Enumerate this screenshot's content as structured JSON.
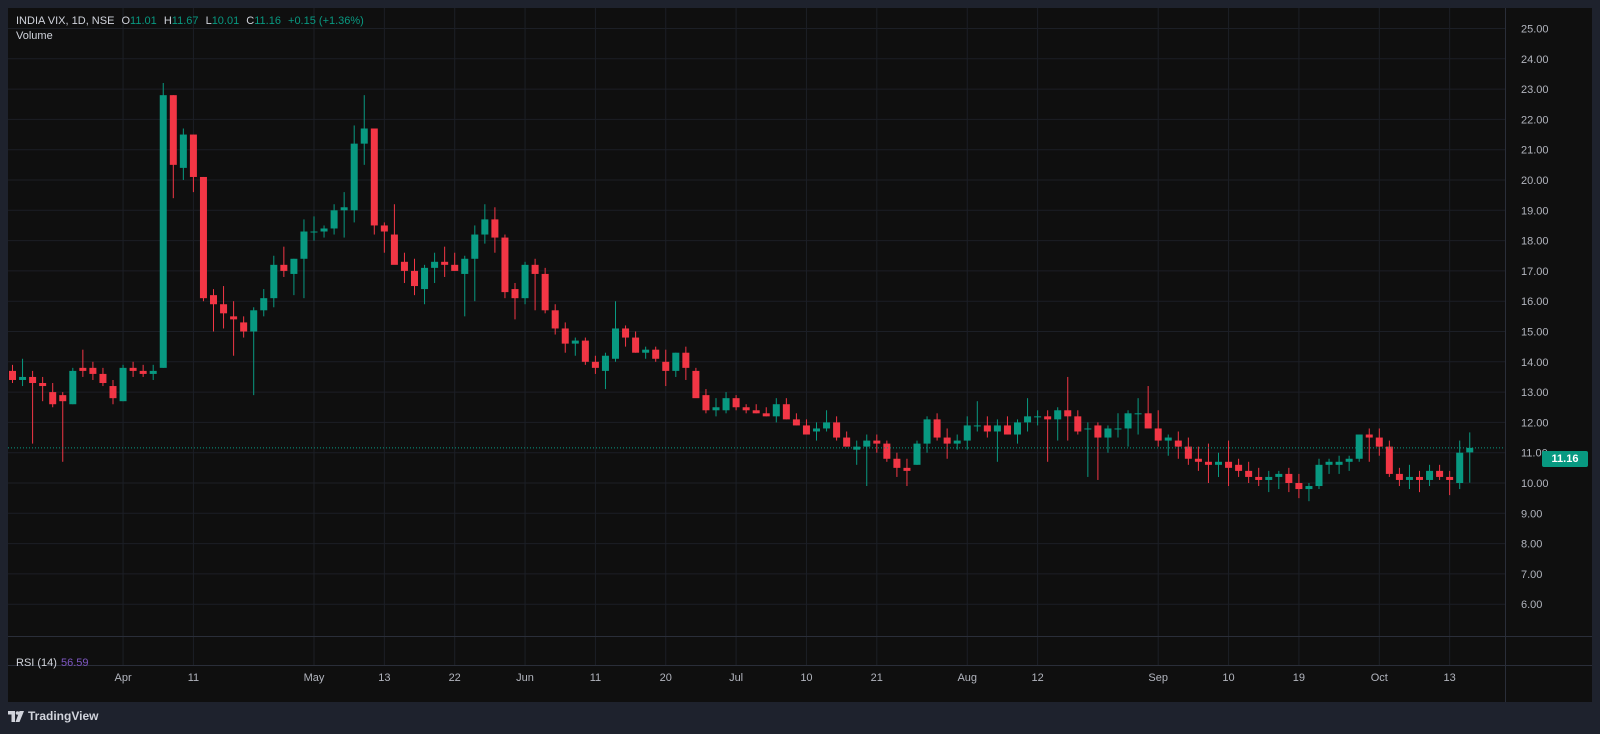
{
  "header": {
    "symbol": "INDIA VIX, 1D, NSE",
    "open_label": "O",
    "open": "11.01",
    "high_label": "H",
    "high": "11.67",
    "low_label": "L",
    "low": "10.01",
    "close_label": "C",
    "close": "11.16",
    "change": "+0.15 (+1.36%)"
  },
  "volume_label": "Volume",
  "rsi": {
    "label": "RSI (14)",
    "value": "56.59"
  },
  "last_price_tag": "11.16",
  "footer": {
    "brand": "TradingView"
  },
  "colors": {
    "up": "#089981",
    "down": "#f23645",
    "background": "#0f0f0f",
    "grid": "#1c1f26",
    "rsi": "#7e57c2"
  },
  "chart_data": {
    "type": "candlestick",
    "ylim": [
      5.5,
      25.3
    ],
    "y_ticks": [
      "25.00",
      "24.00",
      "23.00",
      "22.00",
      "21.00",
      "20.00",
      "19.00",
      "18.00",
      "17.00",
      "16.00",
      "15.00",
      "14.00",
      "13.00",
      "12.00",
      "11.00",
      "10.00",
      "9.00",
      "8.00",
      "7.00",
      "6.00"
    ],
    "x_tick_labels": [
      {
        "label": "Apr",
        "index": 11
      },
      {
        "label": "11",
        "index": 18
      },
      {
        "label": "May",
        "index": 30
      },
      {
        "label": "13",
        "index": 37
      },
      {
        "label": "22",
        "index": 44
      },
      {
        "label": "Jun",
        "index": 51
      },
      {
        "label": "11",
        "index": 58
      },
      {
        "label": "20",
        "index": 65
      },
      {
        "label": "Jul",
        "index": 72
      },
      {
        "label": "10",
        "index": 79
      },
      {
        "label": "21",
        "index": 86
      },
      {
        "label": "Aug",
        "index": 95
      },
      {
        "label": "12",
        "index": 102
      },
      {
        "label": "Sep",
        "index": 114
      },
      {
        "label": "10",
        "index": 121
      },
      {
        "label": "19",
        "index": 128
      },
      {
        "label": "Oct",
        "index": 136
      },
      {
        "label": "13",
        "index": 143
      }
    ],
    "last_price": 11.16,
    "candles": [
      [
        13.7,
        13.9,
        13.3,
        13.4
      ],
      [
        13.4,
        14.1,
        13.2,
        13.5
      ],
      [
        13.5,
        13.7,
        11.3,
        13.3
      ],
      [
        13.3,
        13.5,
        12.7,
        13.2
      ],
      [
        13.0,
        13.3,
        12.5,
        12.6
      ],
      [
        12.9,
        13.0,
        10.7,
        12.7
      ],
      [
        12.6,
        13.8,
        12.6,
        13.7
      ],
      [
        13.8,
        14.4,
        13.5,
        13.7
      ],
      [
        13.8,
        14.0,
        13.4,
        13.6
      ],
      [
        13.6,
        13.8,
        13.2,
        13.3
      ],
      [
        13.2,
        13.4,
        12.6,
        12.8
      ],
      [
        12.7,
        13.9,
        12.7,
        13.8
      ],
      [
        13.8,
        14.0,
        13.5,
        13.7
      ],
      [
        13.7,
        13.9,
        13.5,
        13.6
      ],
      [
        13.6,
        13.9,
        13.4,
        13.7
      ],
      [
        13.8,
        23.2,
        13.8,
        22.8
      ],
      [
        22.8,
        22.8,
        19.4,
        20.5
      ],
      [
        20.4,
        21.7,
        20.0,
        21.5
      ],
      [
        21.5,
        21.5,
        19.6,
        20.1
      ],
      [
        20.1,
        20.1,
        16.0,
        16.1
      ],
      [
        16.2,
        16.4,
        15.0,
        15.9
      ],
      [
        15.9,
        16.5,
        15.1,
        15.6
      ],
      [
        15.5,
        16.0,
        14.2,
        15.4
      ],
      [
        15.3,
        15.5,
        14.8,
        15.0
      ],
      [
        15.0,
        15.8,
        12.9,
        15.7
      ],
      [
        15.7,
        16.4,
        15.5,
        16.1
      ],
      [
        16.1,
        17.5,
        15.8,
        17.2
      ],
      [
        17.2,
        17.8,
        16.8,
        17.0
      ],
      [
        16.9,
        17.4,
        16.2,
        17.4
      ],
      [
        17.4,
        18.7,
        16.1,
        18.3
      ],
      [
        18.3,
        18.8,
        18.0,
        18.3
      ],
      [
        18.3,
        18.5,
        18.1,
        18.4
      ],
      [
        18.4,
        19.2,
        18.2,
        19.0
      ],
      [
        19.0,
        19.6,
        18.1,
        19.1
      ],
      [
        19.0,
        21.8,
        18.6,
        21.2
      ],
      [
        21.2,
        22.8,
        20.5,
        21.7
      ],
      [
        21.7,
        21.7,
        18.2,
        18.5
      ],
      [
        18.5,
        18.6,
        17.6,
        18.3
      ],
      [
        18.2,
        19.2,
        17.3,
        17.2
      ],
      [
        17.3,
        17.6,
        16.6,
        17.0
      ],
      [
        17.0,
        17.4,
        16.2,
        16.5
      ],
      [
        16.4,
        17.2,
        15.9,
        17.1
      ],
      [
        17.1,
        17.6,
        16.6,
        17.3
      ],
      [
        17.3,
        17.8,
        16.8,
        17.2
      ],
      [
        17.2,
        17.6,
        17.0,
        17.0
      ],
      [
        16.9,
        17.5,
        15.5,
        17.4
      ],
      [
        17.4,
        18.5,
        16.0,
        18.2
      ],
      [
        18.2,
        19.2,
        17.9,
        18.7
      ],
      [
        18.7,
        19.1,
        17.6,
        18.1
      ],
      [
        18.1,
        18.2,
        16.1,
        16.3
      ],
      [
        16.4,
        16.6,
        15.4,
        16.1
      ],
      [
        16.1,
        17.3,
        15.9,
        17.2
      ],
      [
        17.2,
        17.4,
        15.7,
        16.9
      ],
      [
        16.9,
        17.1,
        15.6,
        15.7
      ],
      [
        15.7,
        15.9,
        14.9,
        15.1
      ],
      [
        15.1,
        15.3,
        14.3,
        14.6
      ],
      [
        14.6,
        14.8,
        14.2,
        14.7
      ],
      [
        14.7,
        14.8,
        13.9,
        14.0
      ],
      [
        14.0,
        14.2,
        13.6,
        13.8
      ],
      [
        13.7,
        14.3,
        13.1,
        14.2
      ],
      [
        14.1,
        16.0,
        14.0,
        15.1
      ],
      [
        15.1,
        15.2,
        14.5,
        14.8
      ],
      [
        14.8,
        15.0,
        14.3,
        14.3
      ],
      [
        14.3,
        14.5,
        14.1,
        14.4
      ],
      [
        14.4,
        14.5,
        14.0,
        14.1
      ],
      [
        14.0,
        14.4,
        13.2,
        13.7
      ],
      [
        13.7,
        14.3,
        13.5,
        14.3
      ],
      [
        14.3,
        14.5,
        13.4,
        13.8
      ],
      [
        13.7,
        13.8,
        12.9,
        12.8
      ],
      [
        12.9,
        13.1,
        12.3,
        12.4
      ],
      [
        12.4,
        12.8,
        12.2,
        12.5
      ],
      [
        12.4,
        13.0,
        12.3,
        12.8
      ],
      [
        12.8,
        12.9,
        12.4,
        12.5
      ],
      [
        12.5,
        12.6,
        12.3,
        12.4
      ],
      [
        12.4,
        12.6,
        12.3,
        12.3
      ],
      [
        12.3,
        12.5,
        12.2,
        12.2
      ],
      [
        12.2,
        12.8,
        12.0,
        12.6
      ],
      [
        12.6,
        12.8,
        12.1,
        12.1
      ],
      [
        12.1,
        12.3,
        11.9,
        11.9
      ],
      [
        11.9,
        12.1,
        11.6,
        11.6
      ],
      [
        11.7,
        12.0,
        11.4,
        11.8
      ],
      [
        11.8,
        12.4,
        11.7,
        12.0
      ],
      [
        12.0,
        12.2,
        11.4,
        11.5
      ],
      [
        11.5,
        11.7,
        11.2,
        11.2
      ],
      [
        11.1,
        11.4,
        10.6,
        11.2
      ],
      [
        11.2,
        11.6,
        9.9,
        11.4
      ],
      [
        11.4,
        11.6,
        11.0,
        11.3
      ],
      [
        11.3,
        11.4,
        10.7,
        10.8
      ],
      [
        10.8,
        11.0,
        10.2,
        10.5
      ],
      [
        10.5,
        10.8,
        9.9,
        10.4
      ],
      [
        10.6,
        11.4,
        10.6,
        11.3
      ],
      [
        11.3,
        12.2,
        11.0,
        12.1
      ],
      [
        12.1,
        12.3,
        11.4,
        11.5
      ],
      [
        11.5,
        11.8,
        10.8,
        11.3
      ],
      [
        11.3,
        11.6,
        11.1,
        11.4
      ],
      [
        11.4,
        12.2,
        11.1,
        11.9
      ],
      [
        11.9,
        12.7,
        11.7,
        11.9
      ],
      [
        11.9,
        12.2,
        11.5,
        11.7
      ],
      [
        11.7,
        12.1,
        10.7,
        11.9
      ],
      [
        11.9,
        12.2,
        11.6,
        11.6
      ],
      [
        11.6,
        12.1,
        11.3,
        12.0
      ],
      [
        12.0,
        12.8,
        11.7,
        12.2
      ],
      [
        12.2,
        12.4,
        11.9,
        12.2
      ],
      [
        12.2,
        12.4,
        10.7,
        12.1
      ],
      [
        12.1,
        12.5,
        11.4,
        12.4
      ],
      [
        12.4,
        13.5,
        11.4,
        12.2
      ],
      [
        12.2,
        12.4,
        11.6,
        11.7
      ],
      [
        11.8,
        12.0,
        10.2,
        11.8
      ],
      [
        11.9,
        12.0,
        10.1,
        11.5
      ],
      [
        11.5,
        11.9,
        11.0,
        11.8
      ],
      [
        11.8,
        12.3,
        11.5,
        11.8
      ],
      [
        11.8,
        12.4,
        11.2,
        12.3
      ],
      [
        12.3,
        12.8,
        11.6,
        12.3
      ],
      [
        12.3,
        13.2,
        11.8,
        11.8
      ],
      [
        11.8,
        12.4,
        11.2,
        11.4
      ],
      [
        11.4,
        11.6,
        10.9,
        11.5
      ],
      [
        11.4,
        11.7,
        10.8,
        11.2
      ],
      [
        11.2,
        11.5,
        10.6,
        10.8
      ],
      [
        10.8,
        11.2,
        10.4,
        10.7
      ],
      [
        10.7,
        11.3,
        10.0,
        10.6
      ],
      [
        10.6,
        11.0,
        10.2,
        10.7
      ],
      [
        10.7,
        11.4,
        9.9,
        10.5
      ],
      [
        10.6,
        10.8,
        10.2,
        10.4
      ],
      [
        10.4,
        10.7,
        10.0,
        10.2
      ],
      [
        10.2,
        10.5,
        9.9,
        10.1
      ],
      [
        10.1,
        10.4,
        9.7,
        10.2
      ],
      [
        10.2,
        10.4,
        9.8,
        10.3
      ],
      [
        10.3,
        10.5,
        9.7,
        10.0
      ],
      [
        10.0,
        10.3,
        9.5,
        9.8
      ],
      [
        9.8,
        10.0,
        9.4,
        9.9
      ],
      [
        9.9,
        10.8,
        9.8,
        10.6
      ],
      [
        10.6,
        10.8,
        10.3,
        10.7
      ],
      [
        10.6,
        10.9,
        10.3,
        10.7
      ],
      [
        10.7,
        10.9,
        10.4,
        10.8
      ],
      [
        10.8,
        11.6,
        10.7,
        11.6
      ],
      [
        11.6,
        11.8,
        10.7,
        11.5
      ],
      [
        11.5,
        11.8,
        10.9,
        11.2
      ],
      [
        11.2,
        11.4,
        10.2,
        10.3
      ],
      [
        10.3,
        10.5,
        9.9,
        10.1
      ],
      [
        10.1,
        10.6,
        9.8,
        10.2
      ],
      [
        10.2,
        10.4,
        9.7,
        10.1
      ],
      [
        10.1,
        10.6,
        9.9,
        10.4
      ],
      [
        10.4,
        10.6,
        10.1,
        10.2
      ],
      [
        10.2,
        10.4,
        9.6,
        10.1
      ],
      [
        10.0,
        11.4,
        9.8,
        11.0
      ],
      [
        11.01,
        11.67,
        10.01,
        11.16
      ]
    ]
  }
}
